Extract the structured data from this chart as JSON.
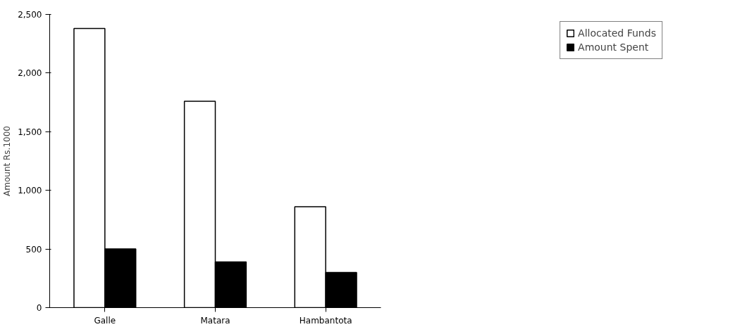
{
  "chart_data": {
    "type": "bar",
    "ylabel": "Amount Rs.1000",
    "categories": [
      "Galle",
      "Matara",
      "Hambantota"
    ],
    "series": [
      {
        "name": "Allocated Funds",
        "color": "#ffffff",
        "values": [
          2380,
          1760,
          860
        ]
      },
      {
        "name": "Amount Spent",
        "color": "#000000",
        "values": [
          500,
          390,
          300
        ]
      }
    ],
    "ylim": [
      0,
      2500
    ],
    "yticks": [
      {
        "value": 0,
        "label": "0"
      },
      {
        "value": 500,
        "label": "500"
      },
      {
        "value": 1000,
        "label": "1,000"
      },
      {
        "value": 1500,
        "label": "1,500"
      },
      {
        "value": 2000,
        "label": "2,000"
      },
      {
        "value": 2500,
        "label": "2,500"
      }
    ],
    "grid": false,
    "legend": "right"
  }
}
